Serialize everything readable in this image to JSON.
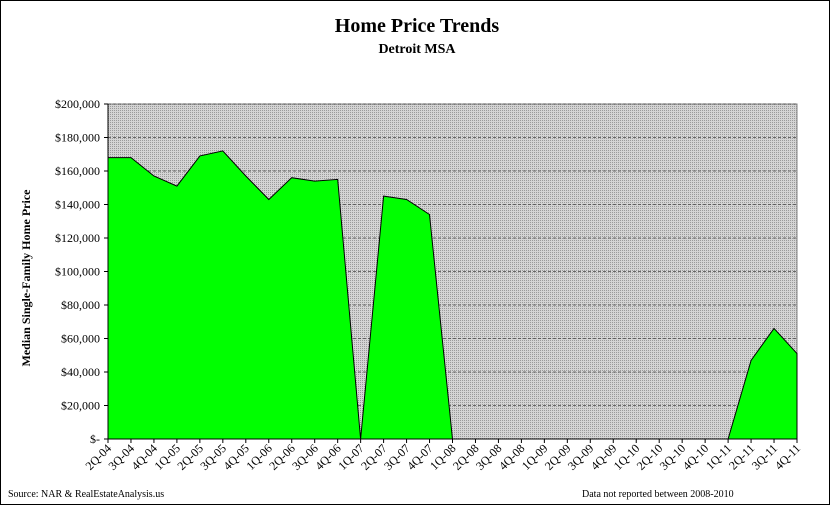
{
  "chart_data": {
    "type": "area",
    "title": "Home Price Trends",
    "subtitle": "Detroit MSA",
    "y_label": "Median Single-Family Home Price",
    "source": "Source: NAR & RealEstateAnalysis.us",
    "note": "Data not reported between 2008-2010",
    "categories": [
      "2Q-04",
      "3Q-04",
      "4Q-04",
      "1Q-05",
      "2Q-05",
      "3Q-05",
      "4Q-05",
      "1Q-06",
      "2Q-06",
      "3Q-06",
      "4Q-06",
      "1Q-07",
      "2Q-07",
      "3Q-07",
      "4Q-07",
      "1Q-08",
      "2Q-08",
      "3Q-08",
      "4Q-08",
      "1Q-09",
      "2Q-09",
      "3Q-09",
      "4Q-09",
      "1Q-10",
      "2Q-10",
      "3Q-10",
      "4Q-10",
      "1Q-11",
      "2Q-11",
      "3Q-11",
      "4Q-11"
    ],
    "values": [
      168000,
      168000,
      157000,
      151000,
      169000,
      172000,
      157000,
      143000,
      156000,
      154000,
      155000,
      0,
      145000,
      143000,
      134000,
      0,
      0,
      0,
      0,
      0,
      0,
      0,
      0,
      0,
      0,
      0,
      0,
      0,
      47000,
      66000,
      51000
    ],
    "color": "#00ff00",
    "ylim": [
      0,
      200000
    ],
    "yticks": [
      {
        "value": 0,
        "label": "$-"
      },
      {
        "value": 20000,
        "label": "$20,000"
      },
      {
        "value": 40000,
        "label": "$40,000"
      },
      {
        "value": 60000,
        "label": "$60,000"
      },
      {
        "value": 80000,
        "label": "$80,000"
      },
      {
        "value": 100000,
        "label": "$100,000"
      },
      {
        "value": 120000,
        "label": "$120,000"
      },
      {
        "value": 140000,
        "label": "$140,000"
      },
      {
        "value": 160000,
        "label": "$160,000"
      },
      {
        "value": 180000,
        "label": "$180,000"
      },
      {
        "value": 200000,
        "label": "$200,000"
      }
    ],
    "grid": true
  }
}
